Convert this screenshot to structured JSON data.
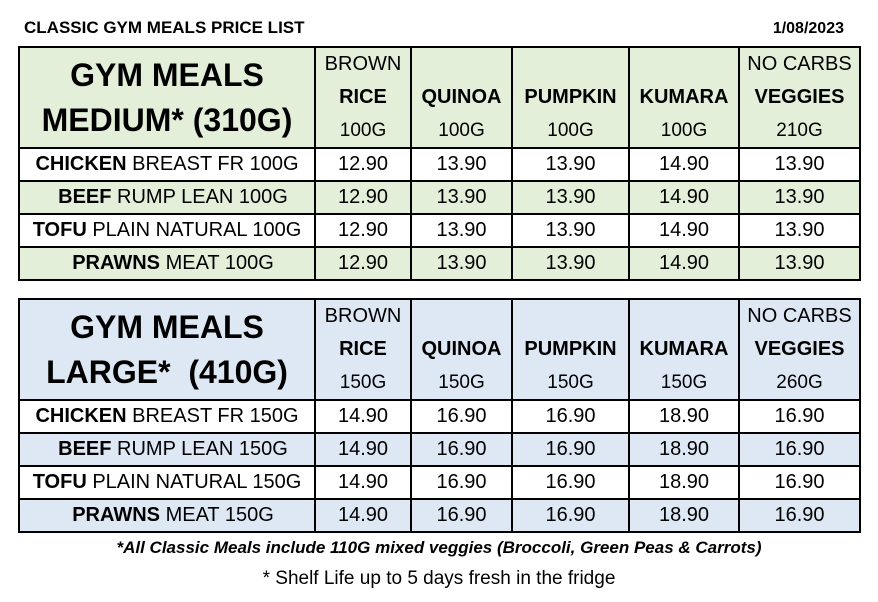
{
  "header": {
    "title": "CLASSIC GYM MEALS PRICE LIST",
    "date": "1/08/2023"
  },
  "columns": [
    {
      "line1": "BROWN",
      "line2": "RICE",
      "line3": "100G"
    },
    {
      "line1": "",
      "line2": "QUINOA",
      "line3": "100G"
    },
    {
      "line1": "",
      "line2": "PUMPKIN",
      "line3": "100G"
    },
    {
      "line1": "",
      "line2": "KUMARA",
      "line3": "100G"
    },
    {
      "line1": "NO CARBS",
      "line2": "VEGGIES",
      "line3": "210G"
    }
  ],
  "medium": {
    "title_line1": "GYM MEALS",
    "title_line2": "MEDIUM* (310G)",
    "columns": [
      {
        "line1": "BROWN",
        "line2": "RICE",
        "line3": "100G"
      },
      {
        "line1": "",
        "line2": "QUINOA",
        "line3": "100G"
      },
      {
        "line1": "",
        "line2": "PUMPKIN",
        "line3": "100G"
      },
      {
        "line1": "",
        "line2": "KUMARA",
        "line3": "100G"
      },
      {
        "line1": "NO CARBS",
        "line2": "VEGGIES",
        "line3": "210G"
      }
    ],
    "rows": [
      {
        "protein": "CHICKEN",
        "desc": " BREAST FR 100G",
        "prices": [
          "12.90",
          "13.90",
          "13.90",
          "14.90",
          "13.90"
        ]
      },
      {
        "protein": "BEEF",
        "desc": " RUMP LEAN 100G",
        "prices": [
          "12.90",
          "13.90",
          "13.90",
          "14.90",
          "13.90"
        ]
      },
      {
        "protein": "TOFU",
        "desc": " PLAIN NATURAL 100G",
        "prices": [
          "12.90",
          "13.90",
          "13.90",
          "14.90",
          "13.90"
        ]
      },
      {
        "protein": "PRAWNS",
        "desc": " MEAT 100G",
        "prices": [
          "12.90",
          "13.90",
          "13.90",
          "14.90",
          "13.90"
        ]
      }
    ]
  },
  "large": {
    "title_line1": "GYM MEALS",
    "title_line2": "LARGE*  (410G)",
    "columns": [
      {
        "line1": "BROWN",
        "line2": "RICE",
        "line3": "150G"
      },
      {
        "line1": "",
        "line2": "QUINOA",
        "line3": "150G"
      },
      {
        "line1": "",
        "line2": "PUMPKIN",
        "line3": "150G"
      },
      {
        "line1": "",
        "line2": "KUMARA",
        "line3": "150G"
      },
      {
        "line1": "NO CARBS",
        "line2": "VEGGIES",
        "line3": "260G"
      }
    ],
    "rows": [
      {
        "protein": "CHICKEN",
        "desc": " BREAST FR 150G",
        "prices": [
          "14.90",
          "16.90",
          "16.90",
          "18.90",
          "16.90"
        ]
      },
      {
        "protein": "BEEF",
        "desc": " RUMP LEAN 150G",
        "prices": [
          "14.90",
          "16.90",
          "16.90",
          "18.90",
          "16.90"
        ]
      },
      {
        "protein": "TOFU",
        "desc": " PLAIN NATURAL 150G",
        "prices": [
          "14.90",
          "16.90",
          "16.90",
          "18.90",
          "16.90"
        ]
      },
      {
        "protein": "PRAWNS",
        "desc": " MEAT 150G",
        "prices": [
          "14.90",
          "16.90",
          "16.90",
          "18.90",
          "16.90"
        ]
      }
    ]
  },
  "footnotes": {
    "veggies": "*All Classic Meals include 110G mixed veggies (Broccoli, Green Peas & Carrots)",
    "shelf_life": "* Shelf Life up to 5 days fresh in the fridge"
  },
  "colors": {
    "medium_shade": "#e3efd9",
    "large_shade": "#dde8f4",
    "border": "#000000"
  }
}
